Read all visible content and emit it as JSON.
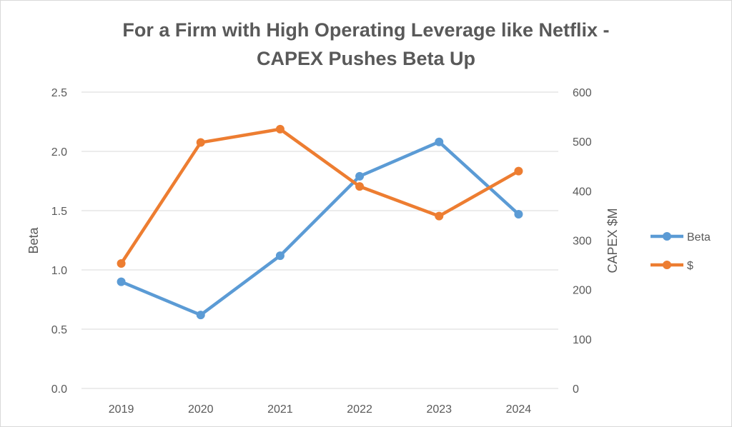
{
  "chart_data": {
    "type": "line",
    "title_lines": [
      "For a Firm with High Operating Leverage like Netflix -",
      "CAPEX Pushes Beta Up"
    ],
    "categories": [
      "2019",
      "2020",
      "2021",
      "2022",
      "2023",
      "2024"
    ],
    "ylabel_left": "Beta",
    "ylabel_right": "CAPEX $M",
    "y_left": {
      "min": 0,
      "max": 2.5,
      "ticks": [
        "0.0",
        "0.5",
        "1.0",
        "1.5",
        "2.0",
        "2.5"
      ]
    },
    "y_right": {
      "min": 0,
      "max": 600,
      "ticks": [
        "0",
        "100",
        "200",
        "300",
        "400",
        "500",
        "600"
      ]
    },
    "grid": true,
    "legend_position": "right",
    "series": [
      {
        "name": "Beta",
        "axis": "left",
        "color": "#5b9bd5",
        "values": [
          0.9,
          0.62,
          1.12,
          1.79,
          2.08,
          1.47
        ]
      },
      {
        "name": "$",
        "axis": "right",
        "color": "#ed7d31",
        "values": [
          253,
          498,
          525,
          409,
          349,
          440
        ]
      }
    ]
  }
}
